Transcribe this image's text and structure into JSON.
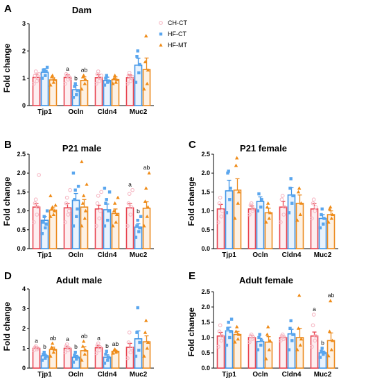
{
  "colors": {
    "CH-CT": "#e8434f",
    "HF-CT": "#3f94e6",
    "HF-MT": "#ec8a1e",
    "CH-CT_point": "#f6b8c4",
    "HF-CT_point": "#5aa6ee",
    "HF-MT_point": "#ef8b17"
  },
  "legend": {
    "position": "top-right of panel A",
    "items": [
      {
        "label": "CH-CT",
        "marker": "circle"
      },
      {
        "label": "HF-CT",
        "marker": "square"
      },
      {
        "label": "HF-MT",
        "marker": "triangle"
      }
    ]
  },
  "chart_data": [
    {
      "panel": "A",
      "title": "Dam",
      "type": "bar",
      "ylabel": "Fold change",
      "ylim": [
        0,
        3
      ],
      "yticks": [
        0,
        1,
        2,
        3
      ],
      "categories": [
        "Tjp1",
        "Ocln",
        "Cldn4",
        "Muc2"
      ],
      "series": [
        {
          "name": "CH-CT",
          "values": [
            1.03,
            1.03,
            1.02,
            1.02
          ],
          "errors": [
            0.12,
            0.1,
            0.12,
            0.1
          ],
          "points": [
            [
              0.8,
              0.9,
              1.0,
              1.1,
              1.25,
              1.15
            ],
            [
              0.8,
              0.95,
              1.05,
              1.15,
              1.1,
              1.0
            ],
            [
              0.8,
              0.9,
              1.0,
              1.15,
              1.25,
              1.1
            ],
            [
              0.8,
              0.9,
              1.0,
              1.1,
              1.2,
              1.05
            ]
          ]
        },
        {
          "name": "HF-CT",
          "values": [
            1.22,
            0.58,
            0.92,
            1.48
          ],
          "errors": [
            0.13,
            0.15,
            0.12,
            0.25
          ],
          "points": [
            [
              1.0,
              1.1,
              1.25,
              1.3,
              1.3,
              1.4
            ],
            [
              0.3,
              0.4,
              0.55,
              0.7,
              0.8
            ],
            [
              0.75,
              0.85,
              0.9,
              1.0,
              1.1
            ],
            [
              0.85,
              1.2,
              1.5,
              1.8,
              2.0
            ]
          ]
        },
        {
          "name": "HF-MT",
          "values": [
            0.94,
            0.92,
            0.95,
            1.32
          ],
          "errors": [
            0.08,
            0.13,
            0.1,
            0.42
          ],
          "points": [
            [
              0.75,
              0.85,
              0.95,
              1.05,
              1.1
            ],
            [
              0.6,
              0.8,
              0.95,
              1.05,
              1.1
            ],
            [
              0.8,
              0.85,
              0.95,
              1.0,
              1.1
            ],
            [
              0.6,
              0.8,
              1.3,
              1.6,
              2.55
            ]
          ]
        }
      ],
      "annotations": [
        {
          "category": "Ocln",
          "series": "CH-CT",
          "text": "a"
        },
        {
          "category": "Ocln",
          "series": "HF-CT",
          "text": "b"
        },
        {
          "category": "Ocln",
          "series": "HF-MT",
          "text": "ab"
        }
      ]
    },
    {
      "panel": "B",
      "title": "P21 male",
      "type": "bar",
      "ylabel": "Fold change",
      "ylim": [
        0,
        2.5
      ],
      "yticks": [
        0.0,
        0.5,
        1.0,
        1.5,
        2.0,
        2.5
      ],
      "categories": [
        "Tjp1",
        "Ocln",
        "Cldn4",
        "Muc2"
      ],
      "series": [
        {
          "name": "CH-CT",
          "values": [
            1.1,
            1.08,
            1.05,
            1.08
          ],
          "errors": [
            0.1,
            0.12,
            0.1,
            0.12
          ],
          "points": [
            [
              0.7,
              0.9,
              1.1,
              1.2,
              1.3,
              1.95
            ],
            [
              0.7,
              0.9,
              1.0,
              1.2,
              1.35,
              1.55
            ],
            [
              0.6,
              0.8,
              1.0,
              1.2,
              1.4,
              1.5
            ],
            [
              0.6,
              0.9,
              1.1,
              1.2,
              1.45,
              1.55
            ]
          ]
        },
        {
          "name": "HF-CT",
          "values": [
            0.75,
            1.28,
            1.03,
            0.57
          ],
          "errors": [
            0.1,
            0.18,
            0.15,
            0.09
          ],
          "points": [
            [
              0.4,
              0.55,
              0.65,
              0.7,
              0.85,
              1.0
            ],
            [
              0.6,
              0.85,
              1.05,
              1.3,
              1.55,
              1.65,
              2.0
            ],
            [
              0.6,
              0.75,
              1.0,
              1.2,
              1.3,
              1.5,
              1.6
            ],
            [
              0.3,
              0.45,
              0.55,
              0.6,
              0.75,
              0.85
            ]
          ]
        },
        {
          "name": "HF-MT",
          "values": [
            1.02,
            1.1,
            0.93,
            1.07
          ],
          "errors": [
            0.06,
            0.2,
            0.12,
            0.17
          ],
          "points": [
            [
              0.85,
              0.9,
              1.0,
              1.05,
              1.1,
              1.15,
              1.4
            ],
            [
              0.6,
              0.8,
              1.0,
              1.2,
              1.4,
              1.7,
              2.3
            ],
            [
              0.6,
              0.7,
              0.9,
              1.0,
              1.2,
              1.35
            ],
            [
              0.6,
              0.85,
              1.1,
              1.25,
              1.6,
              2.0
            ]
          ]
        }
      ],
      "annotations": [
        {
          "category": "Muc2",
          "series": "CH-CT",
          "text": "a"
        },
        {
          "category": "Muc2",
          "series": "HF-CT",
          "text": "b"
        },
        {
          "category": "Muc2",
          "series": "HF-MT",
          "text": "ab"
        }
      ]
    },
    {
      "panel": "C",
      "title": "P21 female",
      "type": "bar",
      "ylabel": "Fold change",
      "ylim": [
        0,
        2.5
      ],
      "yticks": [
        0.0,
        0.5,
        1.0,
        1.5,
        2.0,
        2.5
      ],
      "categories": [
        "Tjp1",
        "Ocln",
        "Cldn4",
        "Muc2"
      ],
      "series": [
        {
          "name": "CH-CT",
          "values": [
            1.05,
            1.05,
            1.1,
            1.05
          ],
          "errors": [
            0.12,
            0.08,
            0.15,
            0.15
          ],
          "points": [
            [
              0.7,
              0.85,
              1.0,
              1.2,
              1.35
            ],
            [
              0.9,
              1.0,
              1.05,
              1.15,
              1.2
            ],
            [
              0.7,
              0.9,
              1.1,
              1.3,
              1.4
            ],
            [
              0.8,
              1.0,
              1.1,
              1.2,
              1.3
            ]
          ]
        },
        {
          "name": "HF-CT",
          "values": [
            1.53,
            1.25,
            1.42,
            0.8
          ],
          "errors": [
            0.28,
            0.12,
            0.2,
            0.1
          ],
          "points": [
            [
              0.95,
              1.3,
              1.6,
              2.0,
              2.05
            ],
            [
              1.0,
              1.1,
              1.3,
              1.45
            ],
            [
              0.95,
              1.2,
              1.4,
              1.6,
              1.85
            ],
            [
              0.55,
              0.65,
              0.8,
              0.9,
              1.05
            ]
          ]
        },
        {
          "name": "HF-MT",
          "values": [
            1.55,
            0.95,
            1.2,
            0.9
          ],
          "errors": [
            0.3,
            0.12,
            0.22,
            0.1
          ],
          "points": [
            [
              0.8,
              1.2,
              1.5,
              2.2,
              2.4
            ],
            [
              0.7,
              0.8,
              0.95,
              1.1,
              1.2
            ],
            [
              0.75,
              0.9,
              1.2,
              1.5,
              1.6
            ],
            [
              0.7,
              0.8,
              0.9,
              1.05,
              1.1
            ]
          ]
        }
      ],
      "annotations": []
    },
    {
      "panel": "D",
      "title": "Adult male",
      "type": "bar",
      "ylabel": "Fold change",
      "ylim": [
        0,
        4
      ],
      "yticks": [
        0,
        1,
        2,
        3,
        4
      ],
      "categories": [
        "Tjp1",
        "Ocln",
        "Cldn4",
        "Muc2"
      ],
      "series": [
        {
          "name": "CH-CT",
          "values": [
            1.0,
            1.0,
            1.03,
            1.05
          ],
          "errors": [
            0.06,
            0.08,
            0.1,
            0.2
          ],
          "points": [
            [
              0.9,
              0.95,
              1.0,
              1.05,
              1.1
            ],
            [
              0.8,
              0.9,
              1.0,
              1.1,
              1.2
            ],
            [
              0.75,
              0.9,
              1.05,
              1.15,
              1.25
            ],
            [
              0.5,
              0.8,
              1.0,
              1.3,
              1.8
            ]
          ]
        },
        {
          "name": "HF-CT",
          "values": [
            0.62,
            0.55,
            0.55,
            1.48
          ],
          "errors": [
            0.08,
            0.1,
            0.12,
            0.4
          ],
          "points": [
            [
              0.4,
              0.5,
              0.6,
              0.7,
              0.8
            ],
            [
              0.3,
              0.45,
              0.55,
              0.65,
              0.8
            ],
            [
              0.25,
              0.4,
              0.55,
              0.7,
              0.85
            ],
            [
              0.6,
              0.9,
              1.3,
              1.8,
              3.05
            ]
          ]
        },
        {
          "name": "HF-MT",
          "values": [
            0.94,
            0.88,
            0.85,
            1.33
          ],
          "errors": [
            0.12,
            0.2,
            0.05,
            0.3
          ],
          "points": [
            [
              0.6,
              0.8,
              0.95,
              1.05,
              1.25
            ],
            [
              0.4,
              0.7,
              0.9,
              1.1,
              1.35
            ],
            [
              0.75,
              0.8,
              0.85,
              0.9,
              0.95
            ],
            [
              0.6,
              1.0,
              1.3,
              1.8,
              2.4
            ]
          ]
        }
      ],
      "annotations": [
        {
          "category": "Tjp1",
          "series": "CH-CT",
          "text": "a"
        },
        {
          "category": "Tjp1",
          "series": "HF-CT",
          "text": "b"
        },
        {
          "category": "Tjp1",
          "series": "HF-MT",
          "text": "ab"
        },
        {
          "category": "Ocln",
          "series": "CH-CT",
          "text": "a"
        },
        {
          "category": "Ocln",
          "series": "HF-CT",
          "text": "b"
        },
        {
          "category": "Ocln",
          "series": "HF-MT",
          "text": "ab"
        },
        {
          "category": "Cldn4",
          "series": "CH-CT",
          "text": "a"
        },
        {
          "category": "Cldn4",
          "series": "HF-CT",
          "text": "b"
        },
        {
          "category": "Cldn4",
          "series": "HF-MT",
          "text": "ab"
        }
      ]
    },
    {
      "panel": "E",
      "title": "Adult female",
      "type": "bar",
      "ylabel": "Fold change",
      "ylim": [
        0,
        2.5
      ],
      "yticks": [
        0.0,
        0.5,
        1.0,
        1.5,
        2.0,
        2.5
      ],
      "categories": [
        "Tjp1",
        "Ocln",
        "Cldn4",
        "Muc2"
      ],
      "series": [
        {
          "name": "CH-CT",
          "values": [
            1.05,
            1.0,
            1.0,
            1.05
          ],
          "errors": [
            0.12,
            0.06,
            0.05,
            0.13
          ],
          "points": [
            [
              0.7,
              0.9,
              1.05,
              1.2,
              1.4
            ],
            [
              0.85,
              0.95,
              1.0,
              1.05,
              1.1
            ],
            [
              0.9,
              0.95,
              1.0,
              1.05,
              1.1
            ],
            [
              0.7,
              0.9,
              1.05,
              1.4,
              1.75
            ]
          ]
        },
        {
          "name": "HF-CT",
          "values": [
            1.22,
            0.87,
            1.12,
            0.5
          ],
          "errors": [
            0.12,
            0.1,
            0.15,
            0.06
          ],
          "points": [
            [
              0.75,
              1.0,
              1.2,
              1.3,
              1.5,
              1.6
            ],
            [
              0.6,
              0.75,
              0.9,
              1.0,
              1.1
            ],
            [
              0.6,
              0.9,
              1.1,
              1.3,
              1.55
            ],
            [
              0.35,
              0.45,
              0.5,
              0.55,
              0.65
            ]
          ]
        },
        {
          "name": "HF-MT",
          "values": [
            1.1,
            0.85,
            1.0,
            0.9
          ],
          "errors": [
            0.1,
            0.18,
            0.3,
            0.25
          ],
          "points": [
            [
              0.85,
              0.95,
              1.1,
              1.2,
              1.35
            ],
            [
              0.3,
              0.6,
              0.9,
              1.1,
              1.35
            ],
            [
              0.6,
              0.75,
              0.95,
              1.3,
              2.38
            ],
            [
              0.4,
              0.6,
              0.9,
              1.2,
              2.2
            ]
          ]
        }
      ],
      "annotations": [
        {
          "category": "Muc2",
          "series": "CH-CT",
          "text": "a"
        },
        {
          "category": "Muc2",
          "series": "HF-CT",
          "text": "b"
        },
        {
          "category": "Muc2",
          "series": "HF-MT",
          "text": "ab"
        }
      ]
    }
  ]
}
